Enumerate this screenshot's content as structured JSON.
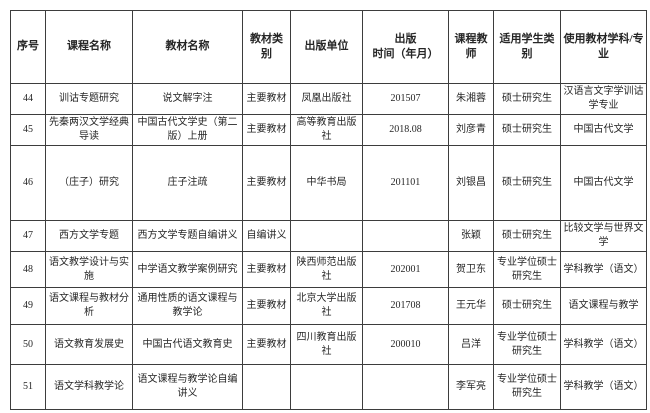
{
  "table": {
    "headers": [
      "序号",
      "课程名称",
      "教材名称",
      "教材类别",
      "出版单位",
      "出版\n时间（年月）",
      "课程教师",
      "适用学生类\n别",
      "使用教材学科/专\n业"
    ],
    "rows": [
      [
        "44",
        "训诂专题研究",
        "说文解字注",
        "主要教材",
        "凤凰出版社",
        "201507",
        "朱湘蓉",
        "硕士研究生",
        "汉语言文字学训诂学专业"
      ],
      [
        "45",
        "先秦两汉文学经典导读",
        "中国古代文学史（第二版）上册",
        "主要教材",
        "高等教育出版社",
        "2018.08",
        "刘彦青",
        "硕士研究生",
        "中国古代文学"
      ],
      [
        "46",
        "（庄子）研究",
        "庄子注疏",
        "主要教材",
        "中华书局",
        "201101",
        "刘银昌",
        "硕士研究生",
        "中国古代文学"
      ],
      [
        "47",
        "西方文学专题",
        "西方文学专题自编讲义",
        "自编讲义",
        "",
        "",
        "张颖",
        "硕士研究生",
        "比较文学与世界文学"
      ],
      [
        "48",
        "语文教学设计与实施",
        "中学语文教学案例研究",
        "主要教材",
        "陕西师范出版社",
        "202001",
        "贺卫东",
        "专业学位硕士研究生",
        "学科教学（语文）"
      ],
      [
        "49",
        "语文课程与教材分析",
        "通用性质的语文课程与教学论",
        "主要教材",
        "北京大学出版社",
        "201708",
        "王元华",
        "硕士研究生",
        "语文课程与教学"
      ],
      [
        "50",
        "语文教育发展史",
        "中国古代语文教育史",
        "主要教材",
        "四川教育出版社",
        "200010",
        "吕洋",
        "专业学位硕士研究生",
        "学科教学（语文）"
      ],
      [
        "51",
        "语文学科教学论",
        "语文课程与教学论自编讲义",
        "",
        "",
        "",
        "李军亮",
        "专业学位硕士研究生",
        "学科教学（语文）"
      ]
    ],
    "colors": {
      "border": "#3d3d3d",
      "text": "#262626",
      "background": "#ffffff"
    }
  }
}
